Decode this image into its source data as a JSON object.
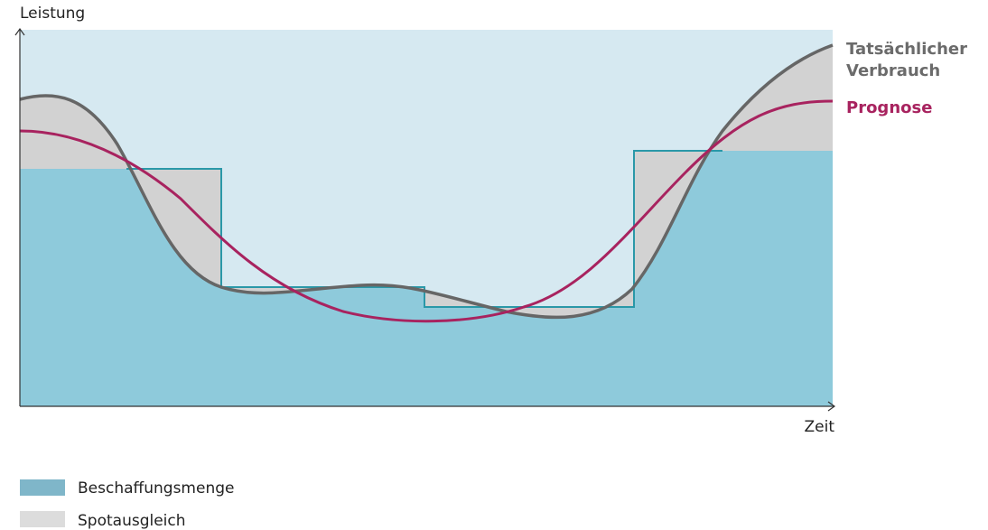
{
  "axes": {
    "y_label": "Leistung",
    "x_label": "Zeit"
  },
  "line_labels": {
    "actual": [
      "Tatsächlicher",
      "Verbrauch"
    ],
    "forecast": "Prognose"
  },
  "legend": [
    "Beschaffungsmenge",
    "Spotausgleich"
  ]
}
